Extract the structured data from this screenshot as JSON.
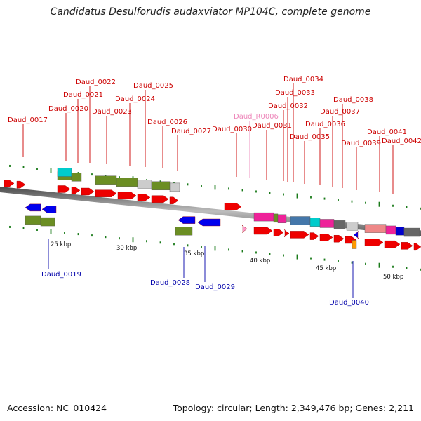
{
  "title": "Candidatus Desulforudis audaxviator MP104C, complete genome",
  "footer": {
    "accession_label": "Accession:",
    "accession_value": "NC_010424",
    "summary": "Topology: circular; Length: 2,349,476 bp; Genes: 2,211"
  },
  "colors": {
    "cds": "#ee0000",
    "pseudogene": "#ff99cc",
    "forward_gene_label": "#cc0000",
    "reverse_gene_label": "#0000aa",
    "rna_gene_label": "#ee88bb",
    "reverse_cds": "#0000ee",
    "orange_feature": "#ff9900",
    "tick": "#1a7a1a",
    "domain_olive": "#6b8e23",
    "domain_cyan": "#00cccc",
    "domain_grey": "#cccccc",
    "domain_dark_grey": "#666666",
    "domain_magenta": "#ee2299",
    "domain_steel_blue": "#4477aa",
    "domain_salmon": "#ee8888",
    "domain_blue": "#0000cc"
  },
  "kbp_labels": [
    "25 kbp",
    "30 kbp",
    "35 kbp",
    "40 kbp",
    "45 kbp",
    "50 kbp"
  ],
  "genes": {
    "forward": [
      {
        "label": "Daud_0017",
        "type": "CDS"
      },
      {
        "label": "Daud_0020",
        "type": "CDS",
        "domains": [
          "cyan",
          "olive"
        ]
      },
      {
        "label": "Daud_0021",
        "type": "CDS"
      },
      {
        "label": "Daud_0022",
        "type": "CDS"
      },
      {
        "label": "Daud_0023",
        "type": "CDS",
        "domains": [
          "olive"
        ]
      },
      {
        "label": "Daud_0024",
        "type": "CDS",
        "domains": [
          "olive",
          "olive"
        ]
      },
      {
        "label": "Daud_0025",
        "type": "CDS",
        "domains": [
          "grey"
        ]
      },
      {
        "label": "Daud_0026",
        "type": "CDS",
        "domains": [
          "olive"
        ]
      },
      {
        "label": "Daud_0027",
        "type": "CDS",
        "domains": [
          "grey"
        ]
      },
      {
        "label": "Daud_0030",
        "type": "CDS"
      },
      {
        "label": "Daud_R0006",
        "type": "RNA"
      },
      {
        "label": "Daud_0031",
        "type": "CDS",
        "domains": [
          "magenta"
        ]
      },
      {
        "label": "Daud_0032",
        "type": "CDS",
        "domains": [
          "olive",
          "magenta"
        ]
      },
      {
        "label": "Daud_0033",
        "type": "CDS"
      },
      {
        "label": "Daud_0034",
        "type": "CDS"
      },
      {
        "label": "Daud_0035",
        "type": "CDS",
        "domains": [
          "steel_blue"
        ]
      },
      {
        "label": "Daud_0036",
        "type": "CDS",
        "domains": [
          "cyan"
        ]
      },
      {
        "label": "Daud_0037",
        "type": "CDS",
        "domains": [
          "magenta"
        ]
      },
      {
        "label": "Daud_0038",
        "type": "CDS",
        "domains": [
          "dark_grey"
        ]
      },
      {
        "label": "Daud_0039",
        "type": "CDS",
        "domains": [
          "grey"
        ]
      },
      {
        "label": "Daud_0041",
        "type": "CDS",
        "domains": [
          "salmon",
          "magenta"
        ]
      },
      {
        "label": "Daud_0042",
        "type": "CDS",
        "domains": [
          "blue",
          "dark_grey"
        ]
      }
    ],
    "reverse": [
      {
        "label": "Daud_0019",
        "type": "CDS",
        "domains": [
          "olive",
          "olive"
        ]
      },
      {
        "label": "Daud_0028",
        "type": "CDS",
        "domains": [
          "olive"
        ]
      },
      {
        "label": "Daud_0029",
        "type": "CDS"
      },
      {
        "label": "Daud_0040",
        "type": "CDS",
        "domains": [
          "orange"
        ]
      }
    ]
  }
}
